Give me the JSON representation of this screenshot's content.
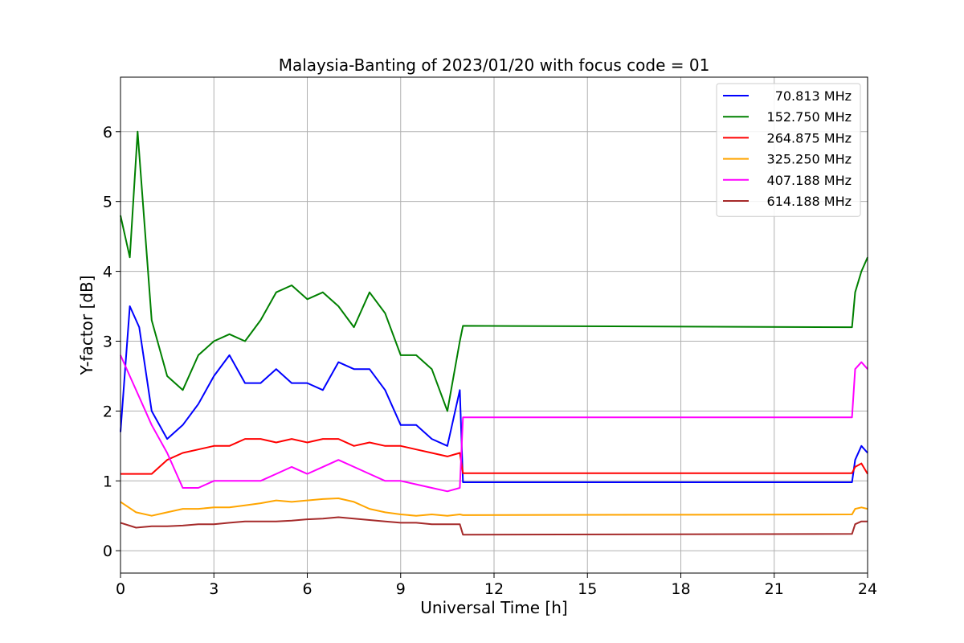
{
  "chart_data": {
    "type": "line",
    "title": "Malaysia-Banting of 2023/01/20 with focus code = 01",
    "xlabel": "Universal Time [h]",
    "ylabel": "Y-factor [dB]",
    "xlim": [
      0,
      24
    ],
    "ylim": [
      -0.32,
      6.78
    ],
    "xticks": [
      0,
      3,
      6,
      9,
      12,
      15,
      18,
      21,
      24
    ],
    "yticks": [
      0,
      1,
      2,
      3,
      4,
      5,
      6
    ],
    "grid": true,
    "legend_position": "top-right",
    "series": [
      {
        "name": "70.813 MHz",
        "color": "#0000ff",
        "x": [
          0,
          0.3,
          0.6,
          1,
          1.5,
          2,
          2.5,
          3,
          3.5,
          4,
          4.5,
          5,
          5.5,
          6,
          6.5,
          7,
          7.5,
          8,
          8.5,
          9,
          9.5,
          10,
          10.5,
          10.9,
          11.0,
          23.5,
          23.6,
          23.8,
          24
        ],
        "y": [
          1.7,
          3.5,
          3.2,
          2.0,
          1.6,
          1.8,
          2.1,
          2.5,
          2.8,
          2.4,
          2.4,
          2.6,
          2.4,
          2.4,
          2.3,
          2.7,
          2.6,
          2.6,
          2.3,
          1.8,
          1.8,
          1.6,
          1.5,
          2.3,
          0.98,
          0.98,
          1.3,
          1.5,
          1.4
        ]
      },
      {
        "name": "152.750 MHz",
        "color": "#008000",
        "x": [
          0,
          0.3,
          0.55,
          1,
          1.5,
          2,
          2.5,
          3,
          3.5,
          4,
          4.5,
          5,
          5.5,
          6,
          6.5,
          7,
          7.5,
          8,
          8.5,
          9,
          9.5,
          10,
          10.5,
          10.9,
          11.0,
          23.5,
          23.6,
          23.8,
          24
        ],
        "y": [
          4.8,
          4.2,
          6.0,
          3.3,
          2.5,
          2.3,
          2.8,
          3.0,
          3.1,
          3.0,
          3.3,
          3.7,
          3.8,
          3.6,
          3.7,
          3.5,
          3.2,
          3.7,
          3.4,
          2.8,
          2.8,
          2.6,
          2.0,
          3.0,
          3.22,
          3.2,
          3.7,
          4.0,
          4.2
        ]
      },
      {
        "name": "264.875 MHz",
        "color": "#ff0000",
        "x": [
          0,
          0.3,
          0.6,
          1,
          1.5,
          2,
          2.5,
          3,
          3.5,
          4,
          4.5,
          5,
          5.5,
          6,
          6.5,
          7,
          7.5,
          8,
          8.5,
          9,
          9.5,
          10,
          10.5,
          10.9,
          11.0,
          23.5,
          23.6,
          23.8,
          24
        ],
        "y": [
          1.1,
          1.1,
          1.1,
          1.1,
          1.3,
          1.4,
          1.45,
          1.5,
          1.5,
          1.6,
          1.6,
          1.55,
          1.6,
          1.55,
          1.6,
          1.6,
          1.5,
          1.55,
          1.5,
          1.5,
          1.45,
          1.4,
          1.35,
          1.4,
          1.11,
          1.11,
          1.2,
          1.25,
          1.1
        ]
      },
      {
        "name": "325.250 MHz",
        "color": "#ffa500",
        "x": [
          0,
          0.5,
          1,
          1.5,
          2,
          2.5,
          3,
          3.5,
          4,
          4.5,
          5,
          5.5,
          6,
          6.5,
          7,
          7.5,
          8,
          8.5,
          9,
          9.5,
          10,
          10.5,
          10.9,
          11.0,
          23.5,
          23.6,
          23.8,
          24
        ],
        "y": [
          0.7,
          0.55,
          0.5,
          0.55,
          0.6,
          0.6,
          0.62,
          0.62,
          0.65,
          0.68,
          0.72,
          0.7,
          0.72,
          0.74,
          0.75,
          0.7,
          0.6,
          0.55,
          0.52,
          0.5,
          0.52,
          0.5,
          0.52,
          0.51,
          0.52,
          0.6,
          0.62,
          0.6
        ]
      },
      {
        "name": "407.188 MHz",
        "color": "#ff00ff",
        "x": [
          0,
          0.3,
          0.6,
          1,
          1.5,
          2,
          2.5,
          3,
          3.5,
          4,
          4.5,
          5,
          5.5,
          6,
          6.5,
          7,
          7.5,
          8,
          8.5,
          9,
          9.5,
          10,
          10.5,
          10.9,
          11.0,
          23.5,
          23.6,
          23.8,
          24
        ],
        "y": [
          2.8,
          2.5,
          2.2,
          1.8,
          1.4,
          0.9,
          0.9,
          1.0,
          1.0,
          1.0,
          1.0,
          1.1,
          1.2,
          1.1,
          1.2,
          1.3,
          1.2,
          1.1,
          1.0,
          1.0,
          0.95,
          0.9,
          0.85,
          0.9,
          1.91,
          1.91,
          2.6,
          2.7,
          2.6
        ]
      },
      {
        "name": "614.188 MHz",
        "color": "#a52a2a",
        "x": [
          0,
          0.5,
          1,
          1.5,
          2,
          2.5,
          3,
          3.5,
          4,
          4.5,
          5,
          5.5,
          6,
          6.5,
          7,
          7.5,
          8,
          8.5,
          9,
          9.5,
          10,
          10.5,
          10.9,
          11.0,
          23.5,
          23.6,
          23.8,
          24
        ],
        "y": [
          0.4,
          0.33,
          0.35,
          0.35,
          0.36,
          0.38,
          0.38,
          0.4,
          0.42,
          0.42,
          0.42,
          0.43,
          0.45,
          0.46,
          0.48,
          0.46,
          0.44,
          0.42,
          0.4,
          0.4,
          0.38,
          0.38,
          0.38,
          0.23,
          0.24,
          0.38,
          0.42,
          0.42
        ]
      }
    ]
  }
}
